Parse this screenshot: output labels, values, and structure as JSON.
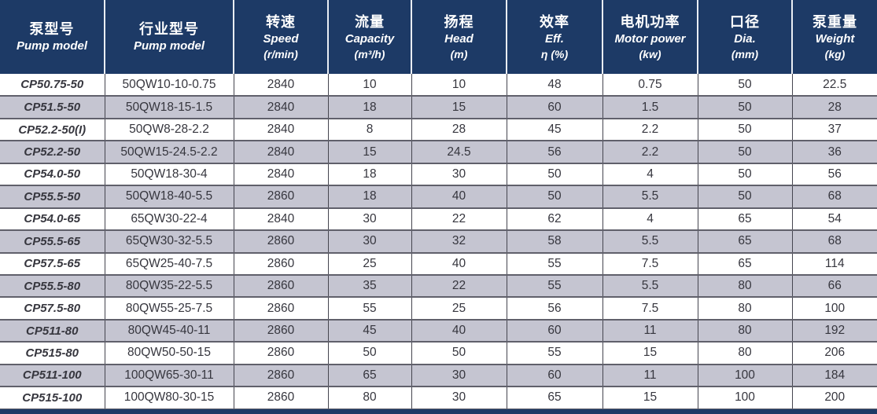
{
  "colors": {
    "header_bg": "#1d3a66",
    "header_text": "#ffffff",
    "header_separator": "#e9edf4",
    "row_bg": "#ffffff",
    "row_alt_bg": "#c5c5d1",
    "grid_vertical": "#45454f",
    "grid_horizontal": "#60606b",
    "cell_text": "#36363e"
  },
  "table": {
    "columns": [
      {
        "key": "pump-model",
        "zh": "泵型号",
        "en": "Pump model",
        "unit": ""
      },
      {
        "key": "industry-model",
        "zh": "行业型号",
        "en": "Pump model",
        "unit": ""
      },
      {
        "key": "speed",
        "zh": "转速",
        "en": "Speed",
        "unit": "(r/min)"
      },
      {
        "key": "capacity",
        "zh": "流量",
        "en": "Capacity",
        "unit": "(m³/h)"
      },
      {
        "key": "head",
        "zh": "扬程",
        "en": "Head",
        "unit": "(m)"
      },
      {
        "key": "efficiency",
        "zh": "效率",
        "en": "Eff.",
        "unit": "η  (%)"
      },
      {
        "key": "motor-power",
        "zh": "电机功率",
        "en": "Motor power",
        "unit": "(kw)"
      },
      {
        "key": "dia",
        "zh": "口径",
        "en": "Dia.",
        "unit": "(mm)"
      },
      {
        "key": "weight",
        "zh": "泵重量",
        "en": "Weight",
        "unit": "(kg)"
      }
    ],
    "rows": [
      [
        "CP50.75-50",
        "50QW10-10-0.75",
        "2840",
        "10",
        "10",
        "48",
        "0.75",
        "50",
        "22.5"
      ],
      [
        "CP51.5-50",
        "50QW18-15-1.5",
        "2840",
        "18",
        "15",
        "60",
        "1.5",
        "50",
        "28"
      ],
      [
        "CP52.2-50(I)",
        "50QW8-28-2.2",
        "2840",
        "8",
        "28",
        "45",
        "2.2",
        "50",
        "37"
      ],
      [
        "CP52.2-50",
        "50QW15-24.5-2.2",
        "2840",
        "15",
        "24.5",
        "56",
        "2.2",
        "50",
        "36"
      ],
      [
        "CP54.0-50",
        "50QW18-30-4",
        "2840",
        "18",
        "30",
        "50",
        "4",
        "50",
        "56"
      ],
      [
        "CP55.5-50",
        "50QW18-40-5.5",
        "2860",
        "18",
        "40",
        "50",
        "5.5",
        "50",
        "68"
      ],
      [
        "CP54.0-65",
        "65QW30-22-4",
        "2840",
        "30",
        "22",
        "62",
        "4",
        "65",
        "54"
      ],
      [
        "CP55.5-65",
        "65QW30-32-5.5",
        "2860",
        "30",
        "32",
        "58",
        "5.5",
        "65",
        "68"
      ],
      [
        "CP57.5-65",
        "65QW25-40-7.5",
        "2860",
        "25",
        "40",
        "55",
        "7.5",
        "65",
        "114"
      ],
      [
        "CP55.5-80",
        "80QW35-22-5.5",
        "2860",
        "35",
        "22",
        "55",
        "5.5",
        "80",
        "66"
      ],
      [
        "CP57.5-80",
        "80QW55-25-7.5",
        "2860",
        "55",
        "25",
        "56",
        "7.5",
        "80",
        "100"
      ],
      [
        "CP511-80",
        "80QW45-40-11",
        "2860",
        "45",
        "40",
        "60",
        "11",
        "80",
        "192"
      ],
      [
        "CP515-80",
        "80QW50-50-15",
        "2860",
        "50",
        "50",
        "55",
        "15",
        "80",
        "206"
      ],
      [
        "CP511-100",
        "100QW65-30-11",
        "2860",
        "65",
        "30",
        "60",
        "11",
        "100",
        "184"
      ],
      [
        "CP515-100",
        "100QW80-30-15",
        "2860",
        "80",
        "30",
        "65",
        "15",
        "100",
        "200"
      ]
    ]
  }
}
